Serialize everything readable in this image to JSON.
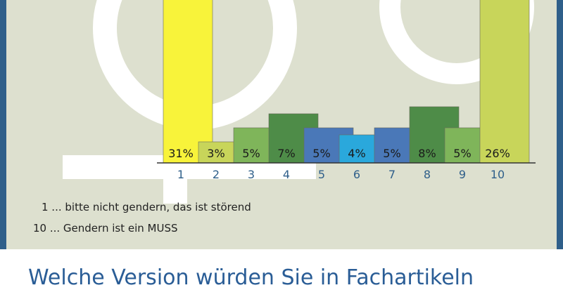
{
  "colors": {
    "background": "#dde0cf",
    "frame": "#2f5f8a",
    "symbol": "#ffffff",
    "axis": "#333333",
    "tick_label": "#2f5f8a",
    "question_text": "#2a5d96"
  },
  "legend": {
    "line1": "1 ... bitte nicht gendern, das ist störend",
    "line2": "10 ... Gendern ist ein MUSS"
  },
  "question": "Welche Version würden Sie in Fachartikeln",
  "chart_data": {
    "type": "bar",
    "categories": [
      "1",
      "2",
      "3",
      "4",
      "5",
      "6",
      "7",
      "8",
      "9",
      "10"
    ],
    "values": [
      31,
      3,
      5,
      7,
      5,
      4,
      5,
      8,
      5,
      26
    ],
    "data_labels": [
      "31%",
      "3%",
      "5%",
      "7%",
      "5%",
      "4%",
      "5%",
      "8%",
      "5%",
      "26%"
    ],
    "bar_colors": [
      "#f8f33a",
      "#c8d55a",
      "#7fb55a",
      "#4e8c48",
      "#4a78b8",
      "#2aa8dc",
      "#4a78b8",
      "#4e8c48",
      "#7fb55a",
      "#c8d55a"
    ],
    "ylim": [
      0,
      10
    ],
    "grid": false,
    "legend": "none"
  }
}
